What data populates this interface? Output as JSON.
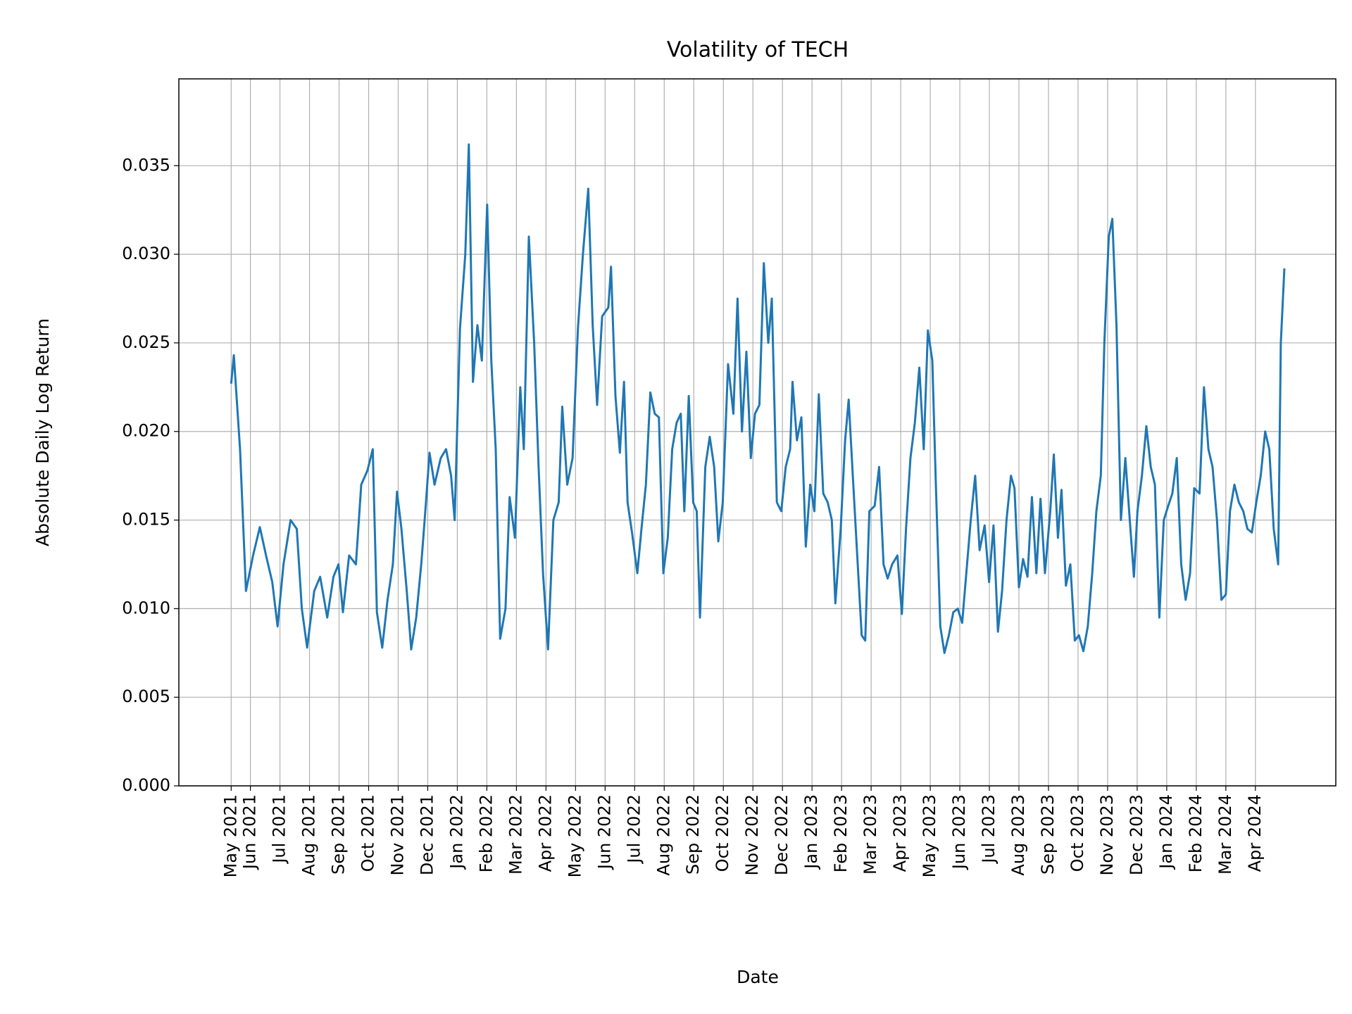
{
  "chart_data": {
    "type": "line",
    "title": "Volatility of TECH",
    "xlabel": "Date",
    "ylabel": "Absolute Daily Log Return",
    "color": "#1f77b4",
    "grid": true,
    "xlim": [
      2.58,
      41.72
    ],
    "ylim": [
      0,
      0.0399
    ],
    "yticks": [
      {
        "value": 0,
        "label": "0.000"
      },
      0.005,
      {
        "value": 0.01,
        "label": "0.010"
      },
      0.015,
      {
        "value": 0.02,
        "label": "0.020"
      },
      0.025,
      {
        "value": 0.03,
        "label": "0.030"
      },
      0.035
    ],
    "xticks": [
      {
        "value": 4.35,
        "label": "May 2021"
      },
      {
        "value": 5,
        "label": "Jun 2021"
      },
      {
        "value": 6,
        "label": "Jul 2021"
      },
      {
        "value": 7,
        "label": "Aug 2021"
      },
      {
        "value": 8,
        "label": "Sep 2021"
      },
      {
        "value": 9,
        "label": "Oct 2021"
      },
      {
        "value": 10,
        "label": "Nov 2021"
      },
      {
        "value": 11,
        "label": "Dec 2021"
      },
      {
        "value": 12,
        "label": "Jan 2022"
      },
      {
        "value": 13,
        "label": "Feb 2022"
      },
      {
        "value": 14,
        "label": "Mar 2022"
      },
      {
        "value": 15,
        "label": "Apr 2022"
      },
      {
        "value": 16,
        "label": "May 2022"
      },
      {
        "value": 17,
        "label": "Jun 2022"
      },
      {
        "value": 18,
        "label": "Jul 2022"
      },
      {
        "value": 19,
        "label": "Aug 2022"
      },
      {
        "value": 20,
        "label": "Sep 2022"
      },
      {
        "value": 21,
        "label": "Oct 2022"
      },
      {
        "value": 22,
        "label": "Nov 2022"
      },
      {
        "value": 23,
        "label": "Dec 2022"
      },
      {
        "value": 24,
        "label": "Jan 2023"
      },
      {
        "value": 25,
        "label": "Feb 2023"
      },
      {
        "value": 26,
        "label": "Mar 2023"
      },
      {
        "value": 27,
        "label": "Apr 2023"
      },
      {
        "value": 28,
        "label": "May 2023"
      },
      {
        "value": 29,
        "label": "Jun 2023"
      },
      {
        "value": 30,
        "label": "Jul 2023"
      },
      {
        "value": 31,
        "label": "Aug 2023"
      },
      {
        "value": 32,
        "label": "Sep 2023"
      },
      {
        "value": 33,
        "label": "Oct 2023"
      },
      {
        "value": 34,
        "label": "Nov 2023"
      },
      {
        "value": 35,
        "label": "Dec 2023"
      },
      {
        "value": 36,
        "label": "Jan 2024"
      },
      {
        "value": 37,
        "label": "Feb 2024"
      },
      {
        "value": 38,
        "label": "Mar 2024"
      },
      {
        "value": 39,
        "label": "Apr 2024"
      }
    ],
    "x": [
      4.35,
      4.44,
      4.65,
      4.85,
      5.09,
      5.32,
      5.53,
      5.74,
      5.92,
      6.12,
      6.36,
      6.57,
      6.74,
      6.92,
      7.16,
      7.36,
      7.6,
      7.81,
      7.98,
      8.13,
      8.34,
      8.57,
      8.75,
      8.96,
      9.14,
      9.28,
      9.46,
      9.64,
      9.82,
      9.96,
      10.11,
      10.29,
      10.44,
      10.61,
      10.79,
      10.94,
      11.06,
      11.23,
      11.44,
      11.62,
      11.79,
      11.91,
      12.09,
      12.27,
      12.39,
      12.53,
      12.68,
      12.83,
      13.01,
      13.15,
      13.3,
      13.45,
      13.63,
      13.77,
      13.95,
      14.13,
      14.25,
      14.42,
      14.6,
      14.75,
      14.9,
      15.07,
      15.25,
      15.43,
      15.55,
      15.72,
      15.9,
      16.08,
      16.25,
      16.43,
      16.58,
      16.73,
      16.9,
      17.11,
      17.2,
      17.35,
      17.5,
      17.64,
      17.76,
      17.91,
      18.09,
      18.23,
      18.38,
      18.53,
      18.68,
      18.82,
      18.97,
      19.12,
      19.27,
      19.42,
      19.56,
      19.68,
      19.83,
      19.98,
      20.1,
      20.21,
      20.39,
      20.54,
      20.69,
      20.83,
      20.98,
      21.16,
      21.34,
      21.48,
      21.63,
      21.78,
      21.93,
      22.07,
      22.22,
      22.37,
      22.52,
      22.64,
      22.81,
      22.96,
      23.11,
      23.26,
      23.34,
      23.49,
      23.64,
      23.79,
      23.94,
      24.08,
      24.23,
      24.38,
      24.53,
      24.67,
      24.79,
      24.97,
      25.12,
      25.24,
      25.38,
      25.53,
      25.68,
      25.8,
      25.94,
      26.12,
      26.27,
      26.42,
      26.56,
      26.71,
      26.89,
      27.04,
      27.18,
      27.33,
      27.48,
      27.63,
      27.78,
      27.92,
      28.07,
      28.19,
      28.34,
      28.48,
      28.63,
      28.78,
      28.93,
      29.08,
      29.22,
      29.37,
      29.52,
      29.67,
      29.84,
      29.99,
      30.14,
      30.29,
      30.43,
      30.58,
      30.73,
      30.85,
      31.0,
      31.14,
      31.29,
      31.44,
      31.59,
      31.73,
      31.88,
      32.06,
      32.18,
      32.32,
      32.44,
      32.59,
      32.74,
      32.89,
      33.03,
      33.18,
      33.33,
      33.48,
      33.62,
      33.77,
      33.89,
      34.04,
      34.16,
      34.3,
      34.45,
      34.6,
      34.75,
      34.89,
      35.01,
      35.16,
      35.31,
      35.46,
      35.6,
      35.75,
      35.9,
      36.05,
      36.19,
      36.34,
      36.49,
      36.64,
      36.79,
      36.93,
      37.11,
      37.26,
      37.41,
      37.55,
      37.7,
      37.85,
      38.0,
      38.14,
      38.29,
      38.44,
      38.59,
      38.73,
      38.88,
      39.03,
      39.18,
      39.33,
      39.47,
      39.62,
      39.77,
      39.86,
      39.98
    ],
    "values": [
      0.0227,
      0.0243,
      0.019,
      0.011,
      0.013,
      0.0146,
      0.013,
      0.0115,
      0.009,
      0.0125,
      0.015,
      0.0145,
      0.01,
      0.0078,
      0.011,
      0.0118,
      0.0095,
      0.0118,
      0.0125,
      0.0098,
      0.013,
      0.0125,
      0.017,
      0.0178,
      0.019,
      0.0098,
      0.0078,
      0.0105,
      0.0125,
      0.0166,
      0.0145,
      0.011,
      0.0077,
      0.0095,
      0.0127,
      0.016,
      0.0188,
      0.017,
      0.0185,
      0.019,
      0.0175,
      0.015,
      0.0258,
      0.03,
      0.0362,
      0.0228,
      0.026,
      0.024,
      0.0328,
      0.024,
      0.019,
      0.0083,
      0.01,
      0.0163,
      0.014,
      0.0225,
      0.019,
      0.031,
      0.025,
      0.018,
      0.012,
      0.0077,
      0.015,
      0.016,
      0.0214,
      0.017,
      0.0185,
      0.0258,
      0.03,
      0.0337,
      0.026,
      0.0215,
      0.0265,
      0.027,
      0.0293,
      0.022,
      0.0188,
      0.0228,
      0.016,
      0.0143,
      0.012,
      0.0145,
      0.017,
      0.0222,
      0.021,
      0.0208,
      0.012,
      0.014,
      0.019,
      0.0205,
      0.021,
      0.0155,
      0.022,
      0.016,
      0.0155,
      0.0095,
      0.018,
      0.0197,
      0.018,
      0.0138,
      0.016,
      0.0238,
      0.021,
      0.0275,
      0.02,
      0.0245,
      0.0185,
      0.021,
      0.0215,
      0.0295,
      0.025,
      0.0275,
      0.016,
      0.0155,
      0.018,
      0.019,
      0.0228,
      0.0195,
      0.0208,
      0.0135,
      0.017,
      0.0155,
      0.0221,
      0.0165,
      0.016,
      0.015,
      0.0103,
      0.0145,
      0.0195,
      0.0218,
      0.0175,
      0.013,
      0.0085,
      0.0082,
      0.0155,
      0.0158,
      0.018,
      0.0125,
      0.0117,
      0.0125,
      0.013,
      0.0097,
      0.0145,
      0.0185,
      0.0205,
      0.0236,
      0.019,
      0.0257,
      0.024,
      0.017,
      0.009,
      0.0075,
      0.0085,
      0.0098,
      0.01,
      0.0092,
      0.012,
      0.015,
      0.0175,
      0.0133,
      0.0147,
      0.0115,
      0.0147,
      0.0087,
      0.011,
      0.015,
      0.0175,
      0.0168,
      0.0112,
      0.0128,
      0.0118,
      0.0163,
      0.012,
      0.0162,
      0.012,
      0.0155,
      0.0187,
      0.014,
      0.0167,
      0.0113,
      0.0125,
      0.0082,
      0.0085,
      0.0076,
      0.009,
      0.012,
      0.0155,
      0.0175,
      0.025,
      0.031,
      0.032,
      0.026,
      0.015,
      0.0185,
      0.015,
      0.0118,
      0.0155,
      0.0175,
      0.0203,
      0.018,
      0.017,
      0.0095,
      0.015,
      0.0158,
      0.0165,
      0.0185,
      0.0125,
      0.0105,
      0.012,
      0.0168,
      0.0165,
      0.0225,
      0.019,
      0.018,
      0.015,
      0.0105,
      0.0108,
      0.0155,
      0.017,
      0.016,
      0.0155,
      0.0145,
      0.0143,
      0.016,
      0.0175,
      0.02,
      0.019,
      0.0145,
      0.0125,
      0.025,
      0.0292
    ]
  }
}
